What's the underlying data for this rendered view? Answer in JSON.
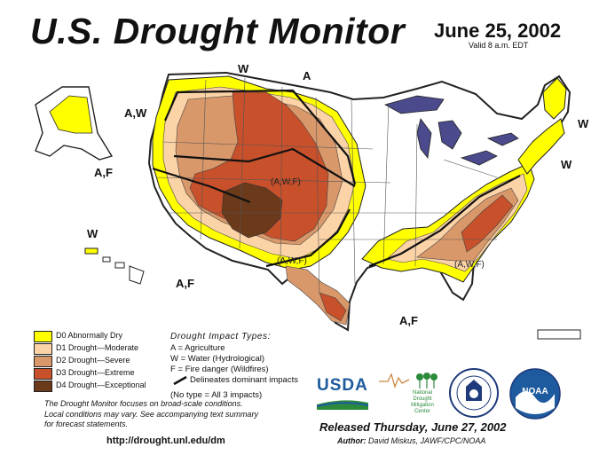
{
  "header": {
    "title": "U.S. Drought Monitor",
    "date": "June 25, 2002",
    "valid": "Valid 8 a.m. EDT"
  },
  "map_labels": {
    "alaska": "A,W",
    "alaska_af": "A,F",
    "hawaii": "W",
    "northern_rockies": "W",
    "north_plains": "A",
    "new_england": "W",
    "mid_atlantic": "W",
    "southwest": "A,F",
    "texas_south": "A,F",
    "central_rockies": "(A,W,F)",
    "southern_plains": "(A,W,F)",
    "southeast": "(A,W,F)"
  },
  "legend": {
    "items": [
      {
        "label": "D0 Abnormally Dry",
        "color": "#ffff00"
      },
      {
        "label": "D1 Drought—Moderate",
        "color": "#fcd3a7"
      },
      {
        "label": "D2 Drought—Severe",
        "color": "#d9986a"
      },
      {
        "label": "D3 Drought—Extreme",
        "color": "#c8502a"
      },
      {
        "label": "D4 Drought—Exceptional",
        "color": "#6b3a1b"
      }
    ]
  },
  "impacts": {
    "heading": "Drought Impact Types:",
    "a": "A = Agriculture",
    "w": "W = Water (Hydrological)",
    "f": "F = Fire danger (Wildfires)",
    "delineates": "Delineates dominant impacts",
    "none": "(No type = All 3 impacts)"
  },
  "note": {
    "line1": "The Drought Monitor focuses on broad-scale conditions.",
    "line2": "Local conditions may vary. See accompanying text summary",
    "line3": "for forecast statements."
  },
  "url": "http://drought.unl.edu/dm",
  "logos": {
    "usda": "USDA",
    "ndmc_line1": "National",
    "ndmc_line2": "Drought",
    "ndmc_line3": "Mitigation",
    "ndmc_line4": "Center",
    "noaa": "NOAA"
  },
  "released": "Released Thursday, June 27, 2002",
  "author": {
    "label": "Author:",
    "name": "David Miskus, JAWF/CPC/NOAA"
  }
}
